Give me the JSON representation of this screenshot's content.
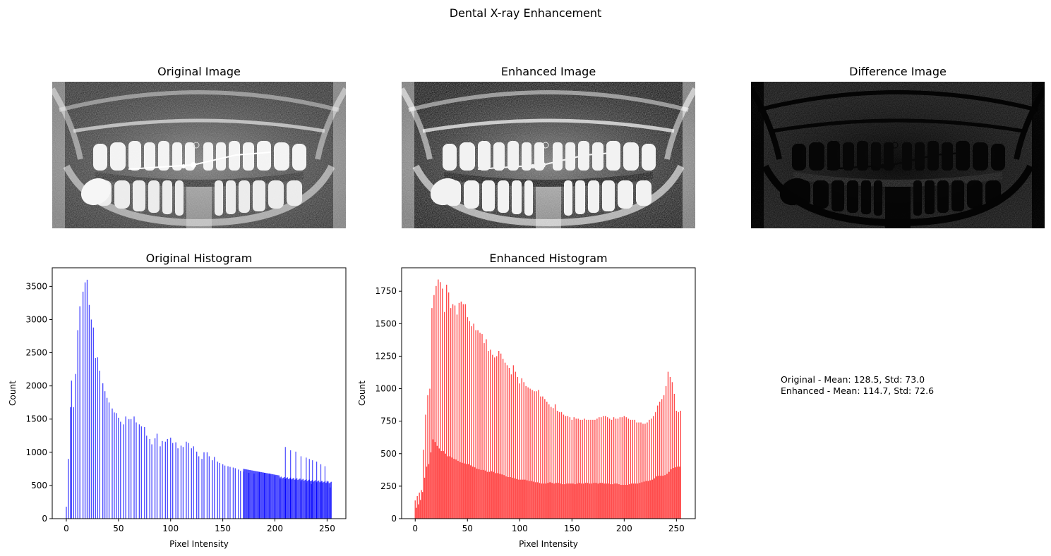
{
  "figure": {
    "suptitle": "Dental X-ray Enhancement",
    "panels": {
      "original_image_title": "Original Image",
      "enhanced_image_title": "Enhanced Image",
      "difference_image_title": "Difference Image"
    },
    "stats_lines": [
      "Original - Mean: 128.5, Std: 73.0",
      "Enhanced - Mean: 114.7, Std: 72.6"
    ]
  },
  "chart_data": [
    {
      "type": "bar",
      "title": "Original Histogram",
      "xlabel": "Pixel Intensity",
      "ylabel": "Count",
      "color": "#0000ff",
      "alpha": 0.7,
      "xlim": [
        -13.5,
        268
      ],
      "ylim": [
        0,
        3780
      ],
      "xticks": [
        0,
        50,
        100,
        150,
        200,
        250
      ],
      "yticks": [
        0,
        500,
        1000,
        1500,
        2000,
        2500,
        3000,
        3500
      ],
      "bins": {
        "x": [
          0,
          2,
          4,
          5,
          7,
          9,
          11,
          13,
          16,
          18,
          20,
          22,
          24,
          26,
          28,
          30,
          32,
          35,
          37,
          39,
          41,
          44,
          46,
          48,
          50,
          52,
          55,
          57,
          60,
          62,
          65,
          67,
          70,
          72,
          75,
          77,
          80,
          82,
          85,
          87,
          90,
          92,
          95,
          97,
          100,
          102,
          105,
          107,
          110,
          112,
          115,
          117,
          120,
          122,
          125,
          127,
          130,
          132,
          135,
          137,
          140,
          142,
          145,
          147,
          150,
          152,
          155,
          157,
          160,
          162,
          165,
          167,
          170,
          175,
          180,
          185,
          190,
          195,
          200,
          205,
          210,
          215,
          220,
          225,
          230,
          235,
          240,
          245,
          250,
          253
        ],
        "y": [
          180,
          900,
          1680,
          2080,
          1680,
          2180,
          2840,
          3200,
          3420,
          3560,
          3600,
          3220,
          3000,
          2880,
          2420,
          2430,
          2230,
          2040,
          1920,
          1820,
          1750,
          1660,
          1600,
          1590,
          1520,
          1460,
          1420,
          1540,
          1500,
          1500,
          1540,
          1450,
          1420,
          1390,
          1380,
          1250,
          1200,
          1120,
          1210,
          1280,
          1090,
          1170,
          1160,
          1200,
          1220,
          1140,
          1150,
          1060,
          1100,
          1080,
          1160,
          1140,
          1060,
          1090,
          1010,
          940,
          900,
          1000,
          1000,
          940,
          880,
          930,
          860,
          840,
          820,
          800,
          790,
          780,
          770,
          760,
          740,
          720,
          710,
          690,
          680,
          700,
          690,
          680,
          650,
          600,
          600,
          600,
          580,
          560,
          540,
          520,
          540,
          560,
          570,
          470
        ],
        "outliers": [
          {
            "x": 210,
            "y": 1080
          },
          {
            "x": 215,
            "y": 1030
          },
          {
            "x": 220,
            "y": 1010
          },
          {
            "x": 225,
            "y": 940
          },
          {
            "x": 230,
            "y": 920
          },
          {
            "x": 233,
            "y": 900
          },
          {
            "x": 236,
            "y": 880
          },
          {
            "x": 240,
            "y": 860
          },
          {
            "x": 244,
            "y": 820
          },
          {
            "x": 248,
            "y": 790
          }
        ]
      }
    },
    {
      "type": "bar",
      "title": "Enhanced Histogram",
      "xlabel": "Pixel Intensity",
      "ylabel": "Count",
      "color": "#ff0000",
      "alpha": 0.7,
      "xlim": [
        -13,
        268
      ],
      "ylim": [
        0,
        1930
      ],
      "xticks": [
        0,
        50,
        100,
        150,
        200,
        250
      ],
      "yticks": [
        0,
        250,
        500,
        750,
        1000,
        1250,
        1500,
        1750
      ],
      "envelope": {
        "x": [
          0,
          3,
          6,
          8,
          10,
          12,
          14,
          16,
          18,
          20,
          22,
          24,
          26,
          28,
          30,
          32,
          34,
          36,
          38,
          40,
          42,
          44,
          46,
          48,
          50,
          52,
          54,
          56,
          58,
          60,
          62,
          64,
          66,
          68,
          70,
          72,
          74,
          76,
          78,
          80,
          82,
          84,
          86,
          88,
          90,
          92,
          94,
          96,
          98,
          100,
          102,
          104,
          106,
          108,
          110,
          112,
          114,
          116,
          118,
          120,
          122,
          124,
          126,
          128,
          130,
          132,
          134,
          136,
          138,
          140,
          142,
          144,
          146,
          148,
          150,
          152,
          154,
          156,
          158,
          160,
          162,
          164,
          166,
          168,
          170,
          172,
          174,
          176,
          178,
          180,
          182,
          184,
          186,
          188,
          190,
          192,
          194,
          196,
          198,
          200,
          202,
          204,
          206,
          208,
          210,
          212,
          214,
          216,
          218,
          220,
          222,
          224,
          226,
          228,
          230,
          232,
          234,
          236,
          238,
          240,
          242,
          244,
          246,
          248,
          250,
          252,
          254
        ],
        "tall": [
          140,
          190,
          220,
          530,
          800,
          950,
          1000,
          1620,
          1720,
          1790,
          1840,
          1820,
          1770,
          1590,
          1800,
          1740,
          1620,
          1650,
          1640,
          1570,
          1660,
          1670,
          1650,
          1650,
          1550,
          1520,
          1480,
          1500,
          1450,
          1450,
          1430,
          1420,
          1350,
          1380,
          1290,
          1300,
          1260,
          1240,
          1250,
          1290,
          1270,
          1230,
          1200,
          1180,
          1160,
          1110,
          1180,
          1130,
          1090,
          1040,
          1080,
          1050,
          1020,
          1010,
          1000,
          990,
          980,
          980,
          990,
          940,
          940,
          920,
          900,
          880,
          860,
          850,
          880,
          830,
          820,
          820,
          800,
          790,
          790,
          780,
          760,
          780,
          770,
          770,
          760,
          760,
          770,
          760,
          760,
          760,
          760,
          760,
          770,
          780,
          780,
          790,
          790,
          780,
          770,
          760,
          780,
          770,
          770,
          780,
          780,
          790,
          780,
          770,
          760,
          760,
          760,
          740,
          740,
          740,
          730,
          730,
          740,
          760,
          770,
          790,
          820,
          870,
          900,
          920,
          950,
          1020,
          1130,
          1090,
          1050,
          960,
          830,
          820,
          830
        ],
        "short": [
          70,
          110,
          160,
          250,
          380,
          420,
          420,
          600,
          620,
          560,
          560,
          520,
          520,
          520,
          480,
          480,
          480,
          460,
          460,
          450,
          440,
          430,
          430,
          420,
          420,
          420,
          400,
          400,
          390,
          380,
          380,
          370,
          380,
          360,
          360,
          360,
          370,
          350,
          350,
          350,
          340,
          340,
          330,
          320,
          320,
          320,
          310,
          310,
          300,
          300,
          300,
          300,
          300,
          290,
          290,
          290,
          280,
          280,
          280,
          270,
          270,
          270,
          270,
          280,
          280,
          270,
          270,
          280,
          270,
          270,
          260,
          270,
          270,
          270,
          270,
          270,
          260,
          280,
          270,
          270,
          270,
          280,
          270,
          270,
          270,
          280,
          270,
          270,
          280,
          270,
          270,
          270,
          270,
          260,
          270,
          270,
          270,
          260,
          260,
          260,
          260,
          260,
          270,
          270,
          270,
          270,
          270,
          280,
          280,
          290,
          290,
          290,
          300,
          300,
          320,
          330,
          330,
          330,
          330,
          340,
          350,
          370,
          390,
          390,
          400,
          400,
          400
        ]
      }
    }
  ]
}
